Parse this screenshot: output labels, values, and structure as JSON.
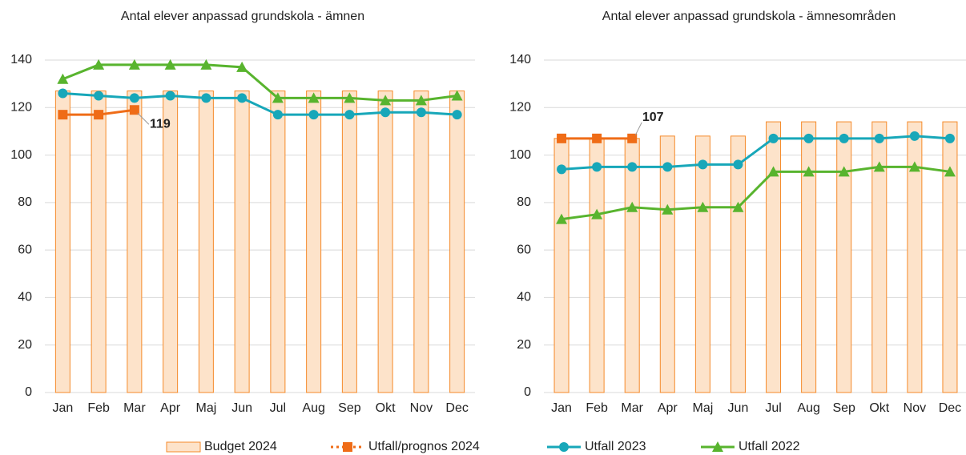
{
  "chart_data": [
    {
      "type": "bar",
      "title": "Antal elever anpassad grundskola - ämnen",
      "categories": [
        "Jan",
        "Feb",
        "Mar",
        "Apr",
        "Maj",
        "Jun",
        "Jul",
        "Aug",
        "Sep",
        "Okt",
        "Nov",
        "Dec"
      ],
      "ylim": [
        0,
        140
      ],
      "yticks": [
        0,
        20,
        40,
        60,
        80,
        100,
        120,
        140
      ],
      "grid": true,
      "legend": "bottom",
      "series": [
        {
          "name": "Budget 2024",
          "type": "bar",
          "color": "#f58a2a",
          "fill": "#fde3ca",
          "values": [
            127,
            127,
            127,
            127,
            127,
            127,
            127,
            127,
            127,
            127,
            127,
            127
          ]
        },
        {
          "name": "Utfall/prognos 2024",
          "type": "line",
          "marker": "square",
          "color": "#ef6c17",
          "values": [
            117,
            117,
            119,
            null,
            null,
            null,
            null,
            null,
            null,
            null,
            null,
            null
          ]
        },
        {
          "name": "Utfall 2023",
          "type": "line",
          "marker": "circle",
          "color": "#17a7b9",
          "values": [
            126,
            125,
            124,
            125,
            124,
            124,
            117,
            117,
            117,
            118,
            118,
            117
          ]
        },
        {
          "name": "Utfall 2022",
          "type": "line",
          "marker": "triangle",
          "color": "#58b42e",
          "values": [
            132,
            138,
            138,
            138,
            138,
            137,
            124,
            124,
            124,
            123,
            123,
            125
          ]
        }
      ]
    },
    {
      "type": "bar",
      "title": "Antal elever anpassad grundskola - ämnesområden",
      "categories": [
        "Jan",
        "Feb",
        "Mar",
        "Apr",
        "Maj",
        "Jun",
        "Jul",
        "Aug",
        "Sep",
        "Okt",
        "Nov",
        "Dec"
      ],
      "ylim": [
        0,
        140
      ],
      "yticks": [
        0,
        20,
        40,
        60,
        80,
        100,
        120,
        140
      ],
      "grid": true,
      "series": [
        {
          "type": "bar",
          "color": "#f58a2a",
          "fill": "#fde3ca",
          "values": [
            107,
            107,
            107,
            108,
            108,
            108,
            114,
            114,
            114,
            114,
            114,
            114
          ]
        },
        {
          "type": "line",
          "marker": "square",
          "color": "#ef6c17",
          "values": [
            107,
            107,
            107,
            null,
            null,
            null,
            null,
            null,
            null,
            null,
            null,
            null
          ]
        },
        {
          "type": "line",
          "marker": "circle",
          "color": "#17a7b9",
          "values": [
            94,
            95,
            95,
            95,
            96,
            96,
            107,
            107,
            107,
            107,
            108,
            107
          ]
        },
        {
          "type": "line",
          "marker": "triangle",
          "color": "#58b42e",
          "values": [
            73,
            75,
            78,
            77,
            78,
            78,
            93,
            93,
            93,
            95,
            95,
            93
          ]
        }
      ]
    }
  ]
}
